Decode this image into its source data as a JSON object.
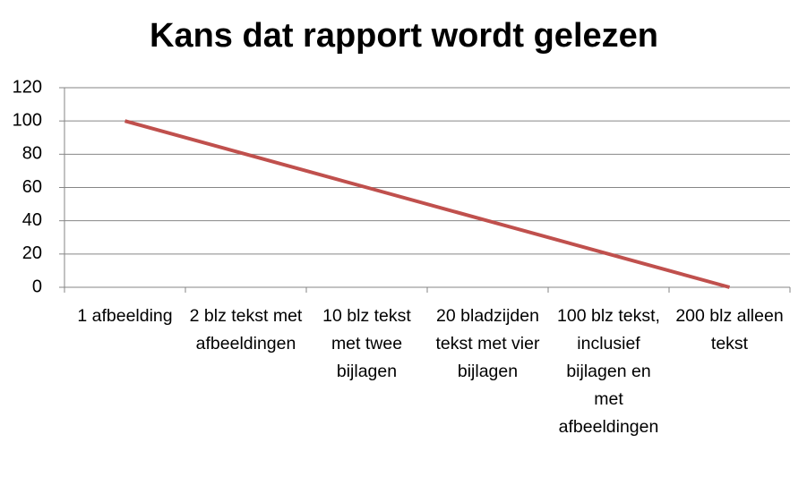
{
  "chart_data": {
    "type": "line",
    "title": "Kans dat rapport wordt gelezen",
    "categories": [
      "1 afbeelding",
      "2 blz tekst met afbeeldingen",
      "10 blz tekst met twee bijlagen",
      "20 bladzijden tekst met vier bijlagen",
      "100 blz tekst, inclusief bijlagen en met afbeeldingen",
      "200 blz alleen tekst"
    ],
    "values": [
      100,
      80,
      60,
      40,
      20,
      0
    ],
    "color": "#c0504d",
    "ylim": [
      0,
      120
    ],
    "yticks": [
      0,
      20,
      40,
      60,
      80,
      100,
      120
    ],
    "grid": true
  }
}
